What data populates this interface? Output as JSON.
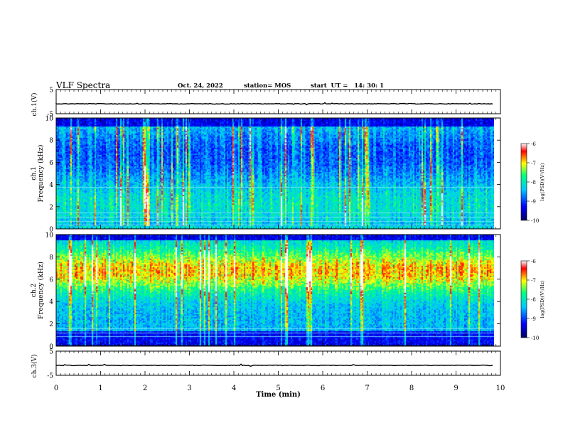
{
  "header": {
    "title": "VLF Spectra",
    "date": "Oct. 24, 2022",
    "station": "station= MOS",
    "start": "start  UT =   14: 30: 1"
  },
  "chart_data": {
    "type": "heatmap",
    "panels": [
      {
        "name": "ch.1(V)",
        "kind": "waveform",
        "ylim": [
          -5,
          5
        ],
        "yticks": [
          "5",
          "-5"
        ]
      },
      {
        "name": "ch.1",
        "kind": "spectrogram",
        "ylabel": "ch.1\nFrequency (kHz)",
        "ylim": [
          0,
          10
        ],
        "yticks": [
          "0",
          "2",
          "4",
          "6",
          "8",
          "10"
        ]
      },
      {
        "name": "ch.2",
        "kind": "spectrogram",
        "ylabel": "ch.2\nFrequency (kHz)",
        "ylim": [
          0,
          10
        ],
        "yticks": [
          "0",
          "2",
          "4",
          "6",
          "8",
          "10"
        ]
      },
      {
        "name": "ch.3(V)",
        "kind": "waveform",
        "ylim": [
          -5,
          5
        ],
        "yticks": [
          "5",
          "-5"
        ]
      }
    ],
    "xlabel": "Time (min)",
    "xlim": [
      0,
      10
    ],
    "xticks": [
      "0",
      "1",
      "2",
      "3",
      "4",
      "5",
      "6",
      "7",
      "8",
      "9",
      "10"
    ],
    "data_end_min": 9.85,
    "colorbar": {
      "label": "log(PSD)(V²/Hz)",
      "range": [
        -10,
        -6
      ],
      "ticks": [
        "-6",
        "-7",
        "-8",
        "-9",
        "-10"
      ],
      "colors": [
        "#000060",
        "#0000ff",
        "#00c8ff",
        "#00ff7f",
        "#ffff00",
        "#ff0000",
        "#ffffff"
      ]
    },
    "grid": false,
    "legend": "none"
  }
}
